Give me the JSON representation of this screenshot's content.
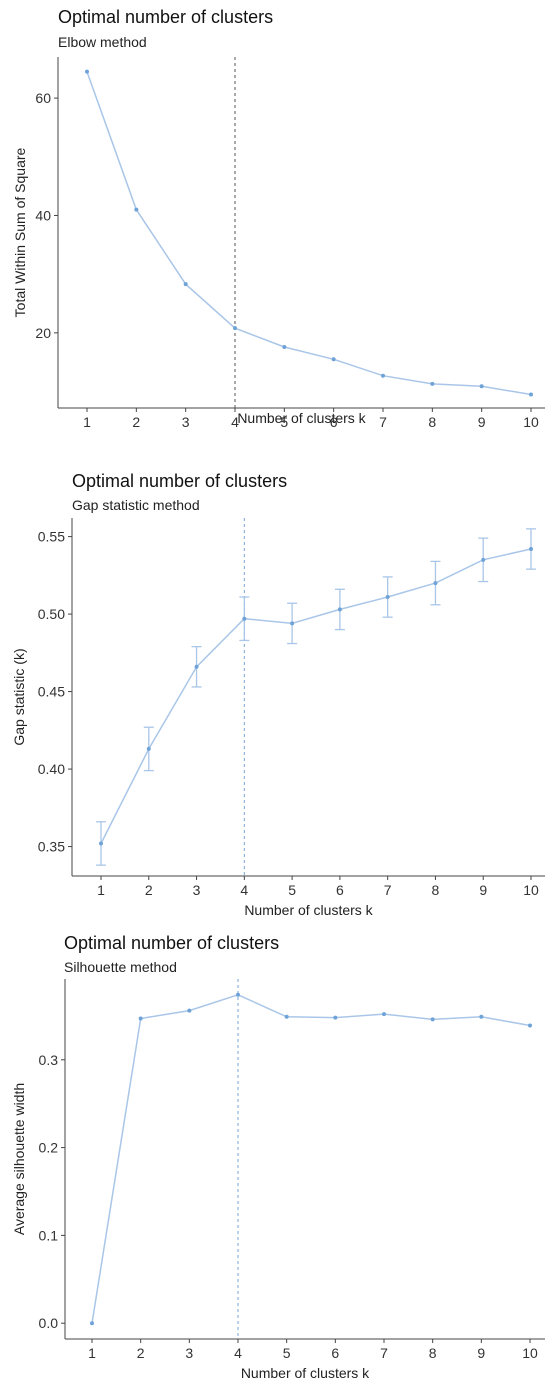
{
  "chart_data": [
    {
      "type": "line",
      "title": "Optimal number of clusters",
      "subtitle": "Elbow method",
      "xlabel": "Number of clusters k",
      "ylabel": "Total Within Sum of Square",
      "x": [
        1,
        2,
        3,
        4,
        5,
        6,
        7,
        8,
        9,
        10
      ],
      "values": [
        64.5,
        41.0,
        28.3,
        20.8,
        17.6,
        15.5,
        12.7,
        11.3,
        10.9,
        9.5
      ],
      "ylim": [
        7.2,
        67
      ],
      "yticks": [
        20,
        40,
        60
      ],
      "ytick_labels": [
        "20",
        "40",
        "60"
      ],
      "optimal_k": 4,
      "grid": false,
      "color": "#6fa3d8"
    },
    {
      "type": "line",
      "title": "Optimal number of clusters",
      "subtitle": "Gap statistic method",
      "xlabel": "Number of clusters k",
      "ylabel": "Gap statistic (k)",
      "x": [
        1,
        2,
        3,
        4,
        5,
        6,
        7,
        8,
        9,
        10
      ],
      "values": [
        0.352,
        0.413,
        0.466,
        0.497,
        0.494,
        0.503,
        0.511,
        0.52,
        0.535,
        0.542
      ],
      "errors": [
        0.014,
        0.014,
        0.013,
        0.014,
        0.013,
        0.013,
        0.013,
        0.014,
        0.014,
        0.013
      ],
      "ylim": [
        0.331,
        0.562
      ],
      "yticks": [
        0.35,
        0.4,
        0.45,
        0.5,
        0.55
      ],
      "ytick_labels": [
        "0.35",
        "0.40",
        "0.45",
        "0.50",
        "0.55"
      ],
      "optimal_k": 4,
      "grid": false,
      "color": "#6fa3d8"
    },
    {
      "type": "line",
      "title": "Optimal number of clusters",
      "subtitle": "Silhouette method",
      "xlabel": "Number of clusters k",
      "ylabel": "Average silhouette width",
      "x": [
        1,
        2,
        3,
        4,
        5,
        6,
        7,
        8,
        9,
        10
      ],
      "values": [
        0.0,
        0.347,
        0.356,
        0.374,
        0.349,
        0.348,
        0.352,
        0.346,
        0.349,
        0.339
      ],
      "ylim": [
        -0.018,
        0.392
      ],
      "yticks": [
        0.0,
        0.1,
        0.2,
        0.3
      ],
      "ytick_labels": [
        "0.0",
        "0.1",
        "0.2",
        "0.3"
      ],
      "optimal_k": 4,
      "grid": false,
      "color": "#6fa3d8"
    }
  ]
}
